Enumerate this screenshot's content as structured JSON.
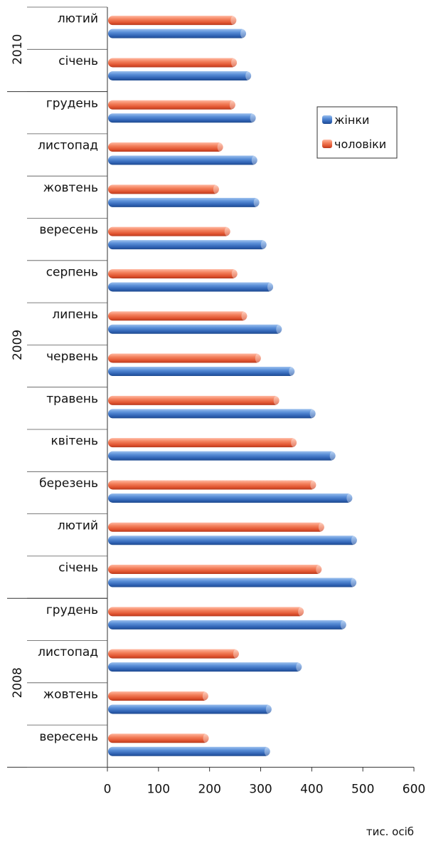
{
  "chart_data": {
    "type": "bar",
    "orientation": "horizontal",
    "title": "",
    "unit_label": "тис. осіб",
    "xlim": [
      0,
      600
    ],
    "x_ticks": [
      0,
      100,
      200,
      300,
      400,
      500,
      600
    ],
    "grid": false,
    "legend_position": "right",
    "categories": [
      {
        "year": "2010",
        "month": "лютий"
      },
      {
        "year": "2010",
        "month": "січень"
      },
      {
        "year": "2009",
        "month": "грудень"
      },
      {
        "year": "2009",
        "month": "листопад"
      },
      {
        "year": "2009",
        "month": "жовтень"
      },
      {
        "year": "2009",
        "month": "вересень"
      },
      {
        "year": "2009",
        "month": "серпень"
      },
      {
        "year": "2009",
        "month": "липень"
      },
      {
        "year": "2009",
        "month": "червень"
      },
      {
        "year": "2009",
        "month": "травень"
      },
      {
        "year": "2009",
        "month": "квітень"
      },
      {
        "year": "2009",
        "month": "березень"
      },
      {
        "year": "2009",
        "month": "лютий"
      },
      {
        "year": "2009",
        "month": "січень"
      },
      {
        "year": "2008",
        "month": "грудень"
      },
      {
        "year": "2008",
        "month": "листопад"
      },
      {
        "year": "2008",
        "month": "жовтень"
      },
      {
        "year": "2008",
        "month": "вересень"
      }
    ],
    "year_groups": [
      {
        "label": "2010",
        "count": 2
      },
      {
        "label": "2009",
        "count": 12
      },
      {
        "label": "2008",
        "count": 4
      }
    ],
    "series": [
      {
        "name": "чоловіки",
        "color": "#f26d4a",
        "values": [
          251,
          252,
          249,
          225,
          217,
          239,
          253,
          272,
          299,
          335,
          369,
          407,
          423,
          418,
          383,
          256,
          196,
          197
        ]
      },
      {
        "name": "жінки",
        "color": "#3f78c8",
        "values": [
          270,
          280,
          289,
          292,
          296,
          310,
          323,
          340,
          365,
          406,
          445,
          478,
          487,
          486,
          466,
          379,
          320,
          317
        ]
      }
    ],
    "legend": [
      "жінки",
      "чоловіки"
    ]
  }
}
